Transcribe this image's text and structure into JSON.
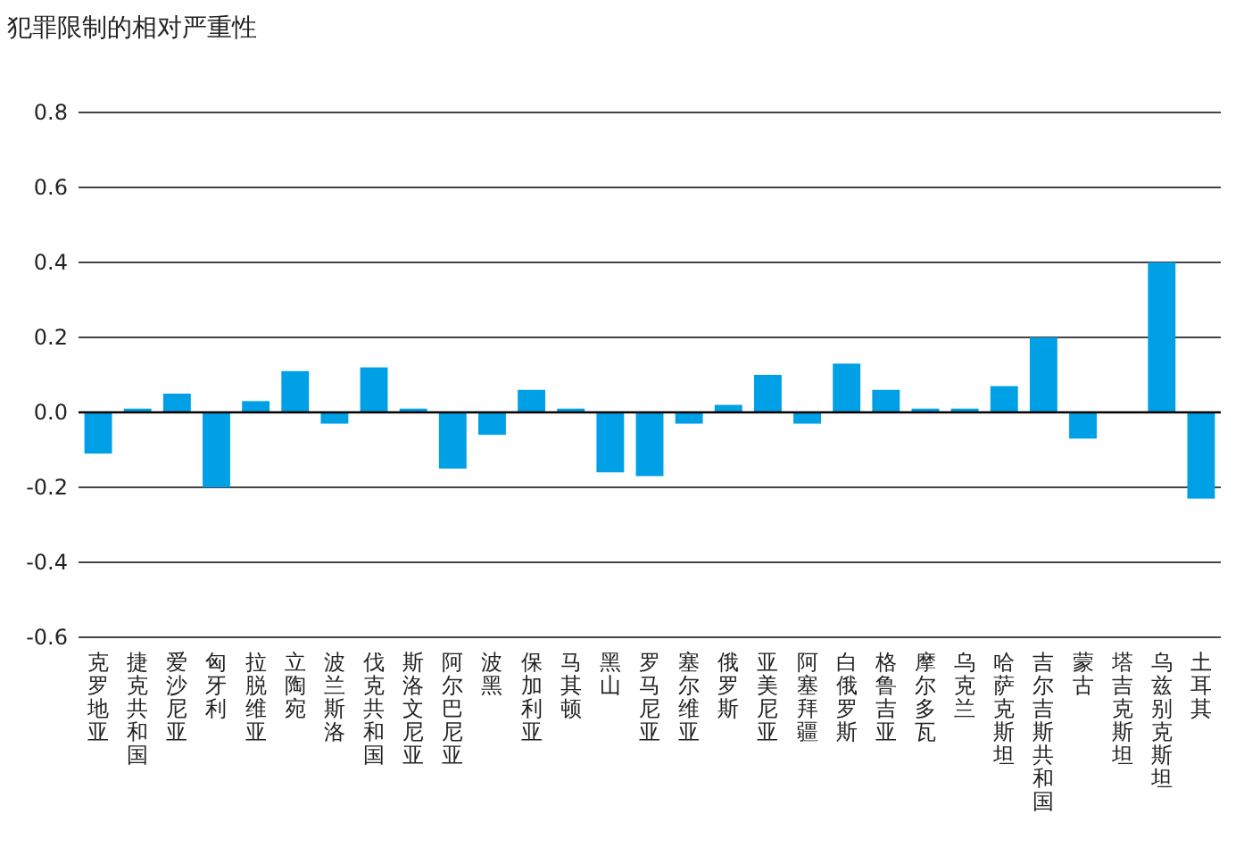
{
  "chart_data": {
    "type": "bar",
    "title": "犯罪限制的相对严重性",
    "categories": [
      "克罗地亚",
      "捷克共和国",
      "爱沙尼亚",
      "匈牙利",
      "拉脱维亚",
      "立陶宛",
      "波兰斯洛",
      "伐克共和国",
      "斯洛文尼亚",
      "阿尔巴尼亚",
      "波黑",
      "保加利亚",
      "马其顿",
      "黑山",
      "罗马尼亚",
      "塞尔维亚",
      "俄罗斯",
      "亚美尼亚",
      "阿塞拜疆",
      "白俄罗斯",
      "格鲁吉亚",
      "摩尔多瓦",
      "乌克兰",
      "哈萨克斯坦",
      "吉尔吉斯共和国",
      "蒙古",
      "塔吉克斯坦",
      "乌兹别克斯坦",
      "土耳其"
    ],
    "values": [
      -0.11,
      0.01,
      0.05,
      -0.2,
      0.03,
      0.11,
      -0.03,
      0.12,
      0.01,
      -0.15,
      -0.06,
      0.06,
      0.01,
      -0.16,
      -0.17,
      -0.03,
      0.02,
      0.1,
      -0.03,
      0.13,
      0.06,
      0.01,
      0.01,
      0.07,
      0.2,
      -0.07,
      0,
      0.4,
      -0.23
    ],
    "color": "#00a0e6",
    "ylim": [
      -0.6,
      0.8
    ],
    "yticks": [
      -0.6,
      -0.4,
      -0.2,
      {
        "value": 0,
        "label": "0.0"
      },
      0.2,
      0.4,
      0.6,
      0.8
    ],
    "grid": "y"
  }
}
